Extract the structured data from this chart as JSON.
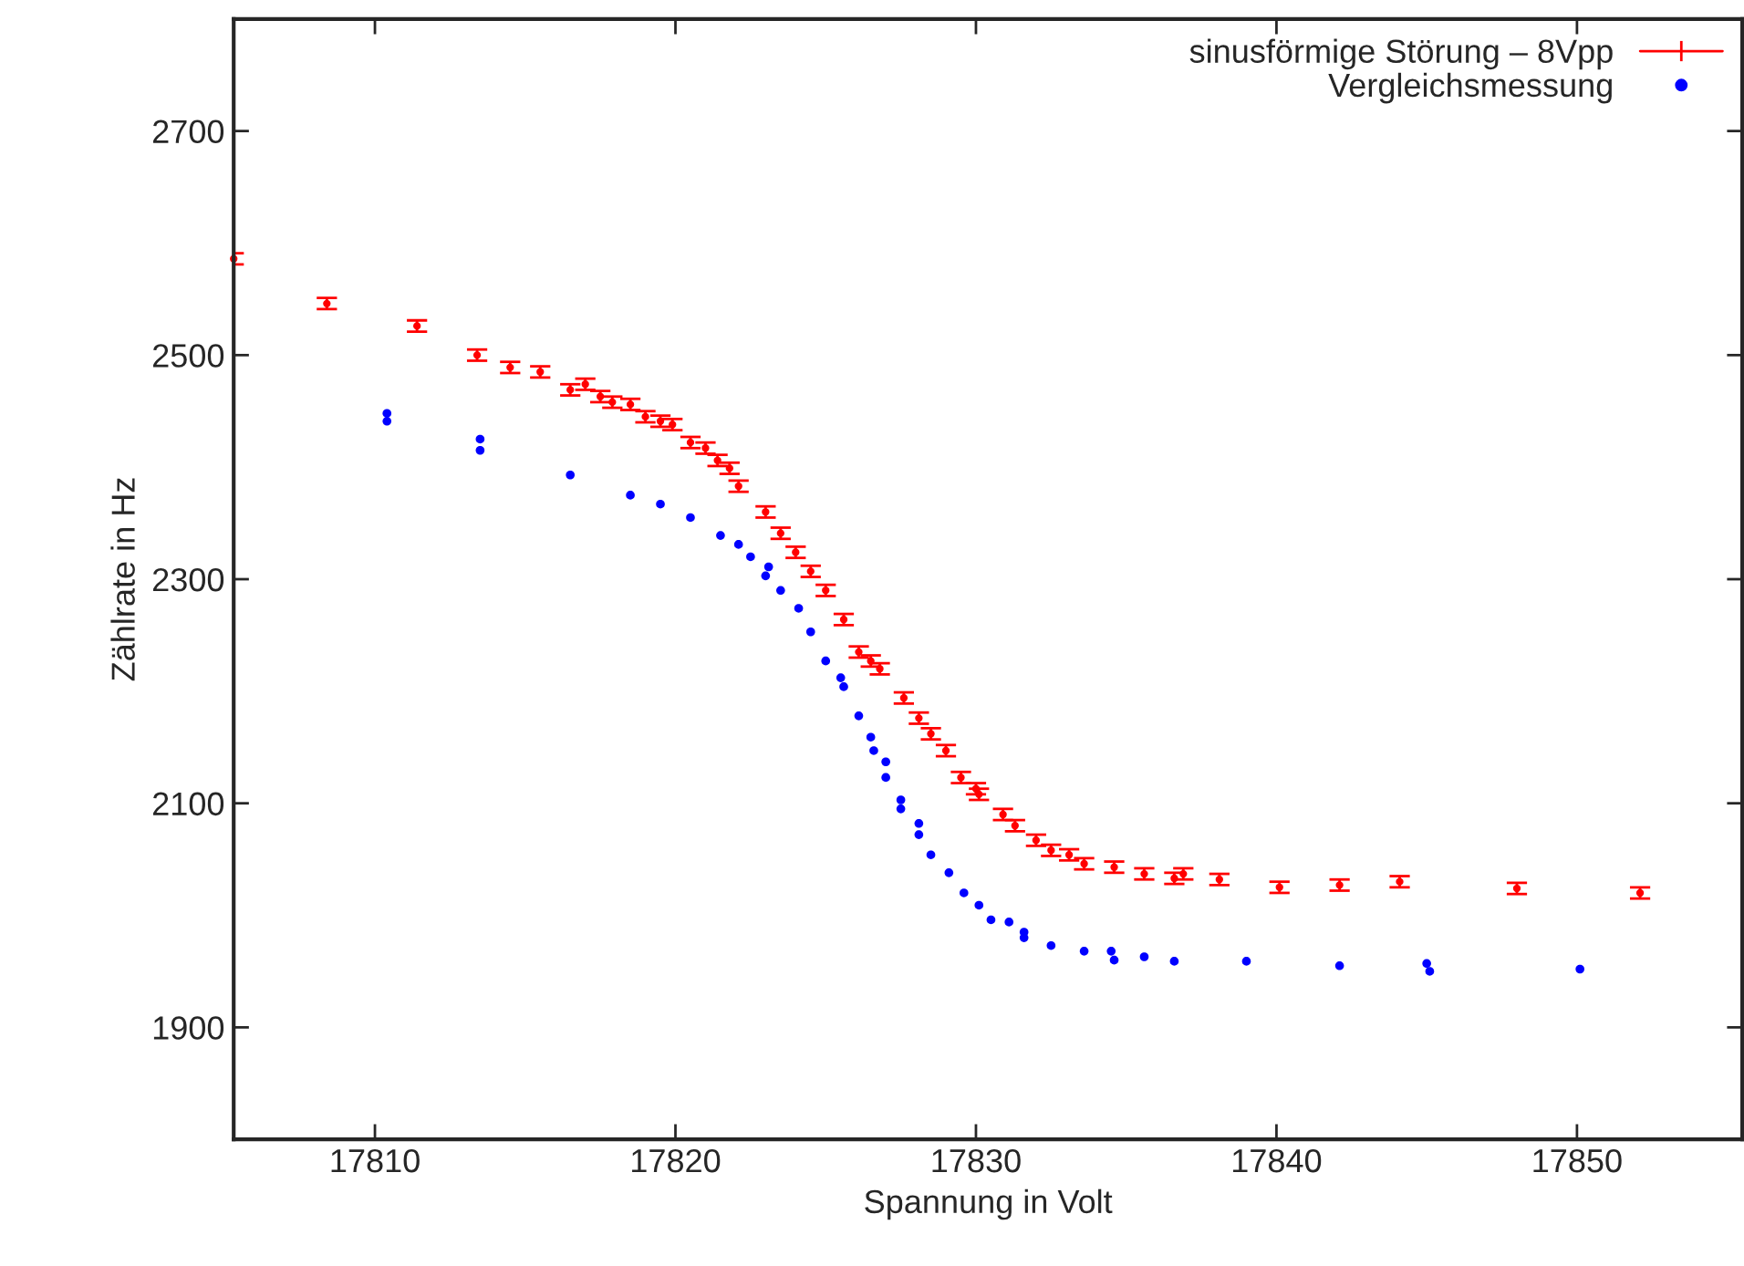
{
  "chart_data": {
    "type": "scatter",
    "xlabel": "Spannung in Volt",
    "ylabel": "Zählrate in Hz",
    "xlim": [
      17805.3,
      17855.5
    ],
    "ylim": [
      1800,
      2800
    ],
    "xticks": [
      17810,
      17820,
      17830,
      17840,
      17850
    ],
    "yticks": [
      1900,
      2100,
      2300,
      2500,
      2700
    ],
    "grid": false,
    "legend": "top right",
    "series": [
      {
        "name": "sinusförmige Störung – 8Vpp",
        "color": "#ff0000",
        "marker": "circle",
        "x": [
          17805.3,
          17808.4,
          17811.4,
          17813.4,
          17814.5,
          17815.5,
          17816.5,
          17817.0,
          17817.5,
          17817.9,
          17818.5,
          17819.0,
          17819.5,
          17819.9,
          17820.5,
          17821.0,
          17821.4,
          17821.8,
          17822.1,
          17823.0,
          17823.5,
          17824.0,
          17824.5,
          17825.0,
          17825.6,
          17826.1,
          17826.5,
          17826.8,
          17827.6,
          17828.1,
          17828.5,
          17829.0,
          17829.5,
          17830.0,
          17830.1,
          17830.9,
          17831.3,
          17832.0,
          17832.5,
          17833.1,
          17833.6,
          17834.6,
          17835.6,
          17836.6,
          17836.9,
          17838.1,
          17840.1,
          17842.1,
          17844.1,
          17848.0,
          17852.1
        ],
        "values": [
          2586,
          2546,
          2526,
          2500,
          2489,
          2485,
          2469,
          2474,
          2463,
          2458,
          2456,
          2445,
          2441,
          2438,
          2422,
          2417,
          2406,
          2399,
          2383,
          2360,
          2341,
          2324,
          2307,
          2290,
          2264,
          2235,
          2227,
          2220,
          2194,
          2176,
          2162,
          2147,
          2123,
          2113,
          2108,
          2090,
          2080,
          2067,
          2058,
          2054,
          2046,
          2043,
          2037,
          2033,
          2037,
          2032,
          2025,
          2027,
          2030,
          2024,
          2020
        ],
        "errors": [
          5,
          5,
          5,
          5,
          5,
          5,
          5,
          5,
          5,
          5,
          5,
          5,
          5,
          5,
          5,
          5,
          5,
          5,
          5,
          5,
          5,
          5,
          5,
          5,
          5,
          5,
          5,
          5,
          5,
          5,
          5,
          5,
          5,
          5,
          5,
          5,
          5,
          5,
          5,
          5,
          5,
          5,
          5,
          5,
          5,
          5,
          5,
          5,
          5,
          5,
          5
        ]
      },
      {
        "name": "Vergleichsmessung",
        "color": "#0000ff",
        "marker": "circle",
        "x": [
          17810.4,
          17810.4,
          17813.5,
          17813.5,
          17816.5,
          17818.5,
          17819.5,
          17820.5,
          17821.5,
          17822.1,
          17822.5,
          17823.1,
          17823.0,
          17823.5,
          17824.1,
          17824.5,
          17825.0,
          17825.5,
          17825.6,
          17826.1,
          17826.5,
          17826.6,
          17827.0,
          17827.0,
          17827.5,
          17827.5,
          17828.1,
          17828.1,
          17828.5,
          17829.1,
          17829.6,
          17830.1,
          17830.5,
          17831.1,
          17831.6,
          17831.6,
          17832.5,
          17833.6,
          17834.5,
          17834.6,
          17835.6,
          17836.6,
          17839.0,
          17842.1,
          17845.0,
          17845.1,
          17850.1
        ],
        "values": [
          2448,
          2441,
          2425,
          2415,
          2393,
          2375,
          2367,
          2355,
          2339,
          2331,
          2320,
          2311,
          2303,
          2290,
          2274,
          2253,
          2227,
          2212,
          2204,
          2178,
          2159,
          2147,
          2137,
          2123,
          2103,
          2095,
          2082,
          2072,
          2054,
          2038,
          2020,
          2009,
          1996,
          1994,
          1985,
          1980,
          1973,
          1968,
          1968,
          1960,
          1963,
          1959,
          1959,
          1955,
          1957,
          1950,
          1952
        ]
      }
    ]
  }
}
